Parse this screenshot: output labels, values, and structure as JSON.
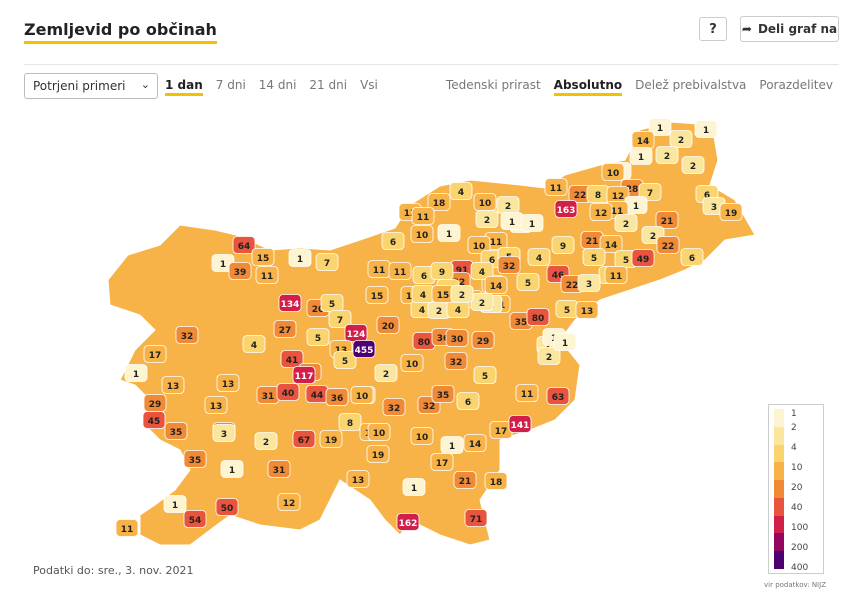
{
  "header": {
    "title": "Zemljevid po občinah",
    "help_label": "?",
    "share_label": "Deli graf na"
  },
  "controls": {
    "metric_select": "Potrjeni primeri",
    "ranges": [
      "1 dan",
      "7 dni",
      "14 dni",
      "21 dni",
      "Vsi"
    ],
    "active_range": 0,
    "modes": [
      "Tedenski prirast",
      "Absolutno",
      "Delež prebivalstva",
      "Porazdelitev"
    ],
    "active_mode": 1
  },
  "colors": {
    "c1": "#fdf4d2",
    "c2": "#fbe6a0",
    "c4": "#f9d46f",
    "c10": "#f7b347",
    "c20": "#f08a36",
    "c40": "#e8543d",
    "c100": "#d11f4a",
    "c200": "#93075f",
    "c400": "#4e0070"
  },
  "legend": {
    "ticks": [
      "1",
      "2",
      "4",
      "10",
      "20",
      "40",
      "100",
      "200",
      "400"
    ]
  },
  "municipality_values": [
    "1",
    "1",
    "2",
    "14",
    "2",
    "1",
    "2",
    "1",
    "10",
    "28",
    "7",
    "6",
    "3",
    "19",
    "11",
    "22",
    "163",
    "8",
    "12",
    "1",
    "11",
    "12",
    "21",
    "1",
    "2",
    "22",
    "2",
    "18",
    "4",
    "10",
    "2",
    "2",
    "1",
    "13",
    "11",
    "1",
    "9",
    "21",
    "14",
    "5",
    "49",
    "5",
    "4",
    "6",
    "11",
    "1",
    "1",
    "10",
    "6",
    "5",
    "4",
    "32",
    "46",
    "22",
    "3",
    "11",
    "13",
    "5",
    "64",
    "15",
    "1",
    "39",
    "11",
    "1",
    "7",
    "6",
    "10",
    "91",
    "22",
    "4",
    "14",
    "11",
    "11",
    "11",
    "6",
    "9",
    "4",
    "15",
    "11",
    "1",
    "10",
    "2",
    "134",
    "20",
    "5",
    "7",
    "4",
    "2",
    "4",
    "2",
    "35",
    "80",
    "5",
    "13",
    "2",
    "2",
    "1",
    "4",
    "15",
    "2",
    "32",
    "27",
    "124",
    "20",
    "80",
    "36",
    "30",
    "29",
    "1",
    "17",
    "4",
    "5",
    "41",
    "13",
    "5",
    "455",
    "21",
    "2",
    "1",
    "13",
    "13",
    "117",
    "18",
    "8",
    "10",
    "32",
    "5",
    "13",
    "29",
    "31",
    "40",
    "44",
    "36",
    "10",
    "32",
    "32",
    "35",
    "6",
    "11",
    "63",
    "45",
    "35",
    "29",
    "8",
    "10",
    "10",
    "3",
    "2",
    "67",
    "19",
    "10",
    "1",
    "14",
    "17",
    "141",
    "35",
    "1",
    "31",
    "17",
    "21",
    "18",
    "13",
    "19",
    "1",
    "1",
    "50",
    "12",
    "11",
    "54",
    "71",
    "162",
    "29",
    "1"
  ],
  "footer": {
    "date": "Podatki do: sre., 3. nov. 2021",
    "source": "vir podatkov: NIJZ"
  }
}
